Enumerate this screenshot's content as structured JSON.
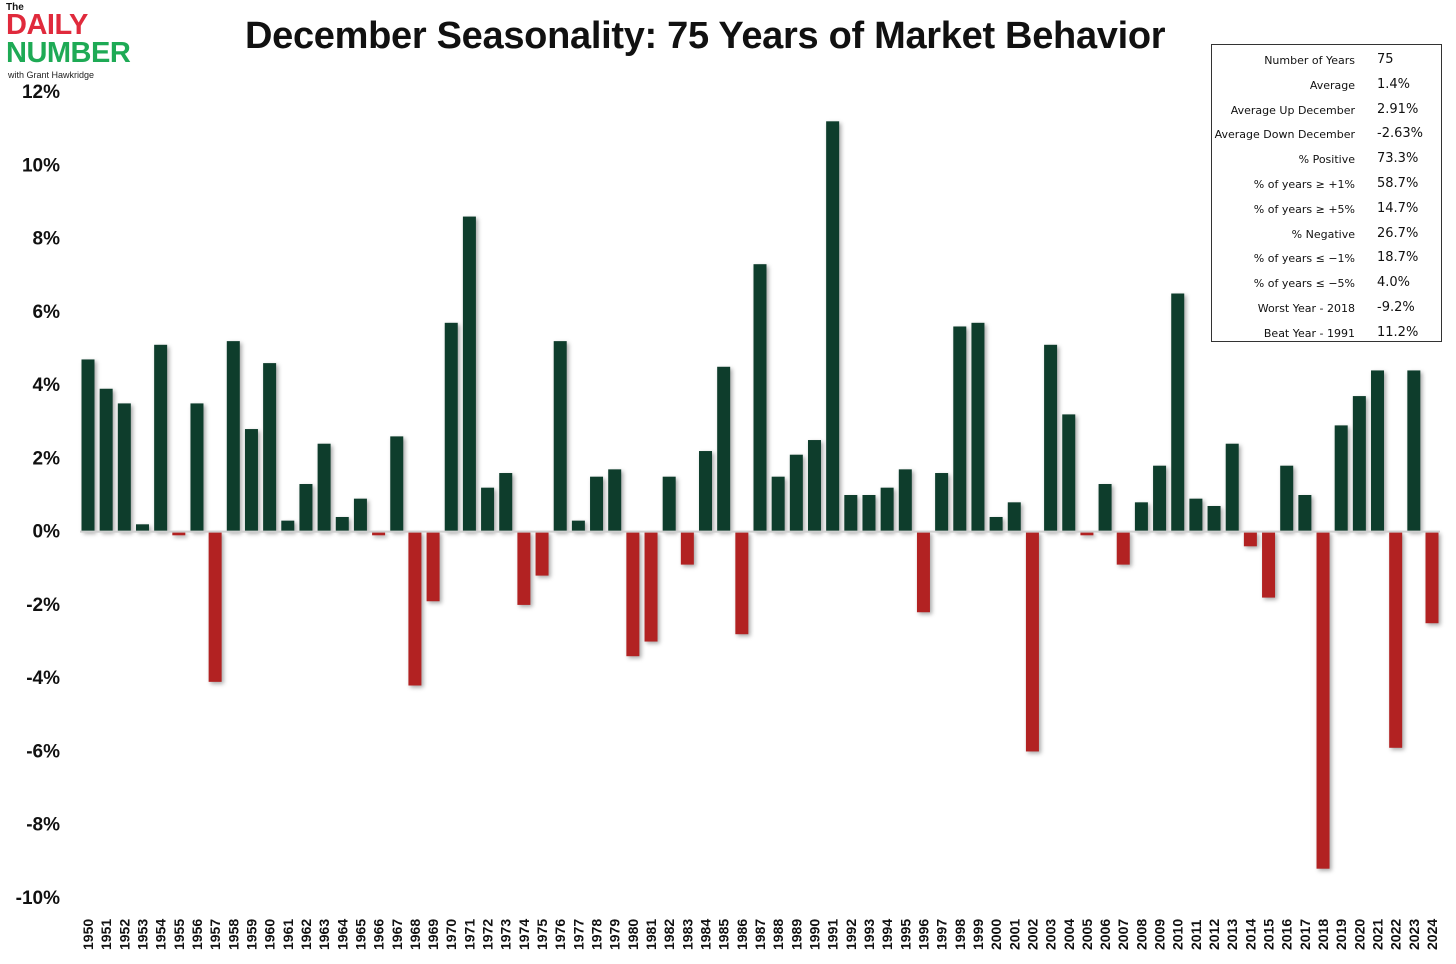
{
  "logo": {
    "the": "The",
    "daily": "DAILY",
    "number": "NUMBER",
    "byline": "with Grant Hawkridge"
  },
  "title": "December Seasonality: 75 Years of Market Behavior",
  "stats": [
    {
      "label": "Number of Years",
      "value": "75"
    },
    {
      "label": "Average",
      "value": "1.4%"
    },
    {
      "label": "Average Up December",
      "value": "2.91%"
    },
    {
      "label": "Average Down December",
      "value": "-2.63%"
    },
    {
      "label": "% Positive",
      "value": "73.3%"
    },
    {
      "label": "% of years ≥ +1%",
      "value": "58.7%"
    },
    {
      "label": "% of years ≥ +5%",
      "value": "14.7%"
    },
    {
      "label": "% Negative",
      "value": "26.7%"
    },
    {
      "label": "% of years ≤ −1%",
      "value": "18.7%"
    },
    {
      "label": "% of years ≤ −5%",
      "value": "4.0%"
    },
    {
      "label": "Worst Year - 2018",
      "value": "-9.2%"
    },
    {
      "label": "Beat Year - 1991",
      "value": "11.2%"
    }
  ],
  "chart_data": {
    "type": "bar",
    "title": "December Seasonality: 75 Years of Market Behavior",
    "ylim": [
      -10,
      12
    ],
    "yticks": [
      12,
      10,
      8,
      6,
      4,
      2,
      0,
      -2,
      -4,
      -6,
      -8,
      -10
    ],
    "ytick_labels": [
      "12%",
      "10%",
      "8%",
      "6%",
      "4%",
      "2%",
      "0%",
      "-2%",
      "-4%",
      "-6%",
      "-8%",
      "-10%"
    ],
    "colors": {
      "positive": "#0e3d2c",
      "negative": "#b22222"
    },
    "grid": false,
    "categories": [
      "1950",
      "1951",
      "1952",
      "1953",
      "1954",
      "1955",
      "1956",
      "1957",
      "1958",
      "1959",
      "1960",
      "1961",
      "1962",
      "1963",
      "1964",
      "1965",
      "1966",
      "1967",
      "1968",
      "1969",
      "1970",
      "1971",
      "1972",
      "1973",
      "1974",
      "1975",
      "1976",
      "1977",
      "1978",
      "1979",
      "1980",
      "1981",
      "1982",
      "1983",
      "1984",
      "1985",
      "1986",
      "1987",
      "1988",
      "1989",
      "1990",
      "1991",
      "1992",
      "1993",
      "1994",
      "1995",
      "1996",
      "1997",
      "1998",
      "1999",
      "2000",
      "2001",
      "2002",
      "2003",
      "2004",
      "2005",
      "2006",
      "2007",
      "2008",
      "2009",
      "2010",
      "2011",
      "2012",
      "2013",
      "2014",
      "2015",
      "2016",
      "2017",
      "2018",
      "2019",
      "2020",
      "2021",
      "2022",
      "2023",
      "2024"
    ],
    "values": [
      4.7,
      3.9,
      3.5,
      0.2,
      5.1,
      -0.1,
      3.5,
      -4.1,
      5.2,
      2.8,
      4.6,
      0.3,
      1.3,
      2.4,
      0.4,
      0.9,
      -0.1,
      2.6,
      -4.2,
      -1.9,
      5.7,
      8.6,
      1.2,
      1.6,
      -2.0,
      -1.2,
      5.2,
      0.3,
      1.5,
      1.7,
      -3.4,
      -3.0,
      1.5,
      -0.9,
      2.2,
      4.5,
      -2.8,
      7.3,
      1.5,
      2.1,
      2.5,
      11.2,
      1.0,
      1.0,
      1.2,
      1.7,
      -2.2,
      1.6,
      5.6,
      5.7,
      0.4,
      0.8,
      -6.0,
      5.1,
      3.2,
      -0.1,
      1.3,
      -0.9,
      0.8,
      1.8,
      6.5,
      0.9,
      0.7,
      2.4,
      -0.4,
      -1.8,
      1.8,
      1.0,
      -9.2,
      2.9,
      3.7,
      4.4,
      -5.9,
      4.4,
      -2.5
    ]
  }
}
